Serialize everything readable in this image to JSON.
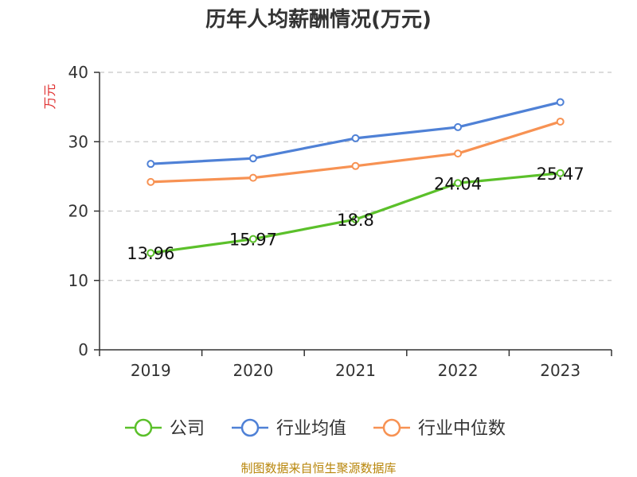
{
  "chart_data": {
    "type": "line",
    "title": "历年人均薪酬情况(万元)",
    "xlabel": "",
    "ylabel": "万元",
    "categories": [
      "2019",
      "2020",
      "2021",
      "2022",
      "2023"
    ],
    "ylim": [
      0,
      40
    ],
    "yticks": [
      0,
      10,
      20,
      30,
      40
    ],
    "grid": true,
    "legend_position": "bottom-center",
    "series": [
      {
        "name": "公司",
        "values": [
          13.96,
          15.97,
          18.8,
          24.04,
          25.47
        ],
        "color": "#5bc02a",
        "show_labels": true
      },
      {
        "name": "行业均值",
        "values": [
          26.8,
          27.6,
          30.5,
          32.1,
          35.7
        ],
        "color": "#4f81d6",
        "show_labels": false
      },
      {
        "name": "行业中位数",
        "values": [
          24.2,
          24.8,
          26.5,
          28.3,
          32.9
        ],
        "color": "#f79253",
        "show_labels": false
      }
    ]
  },
  "source_note": "制图数据来自恒生聚源数据库"
}
